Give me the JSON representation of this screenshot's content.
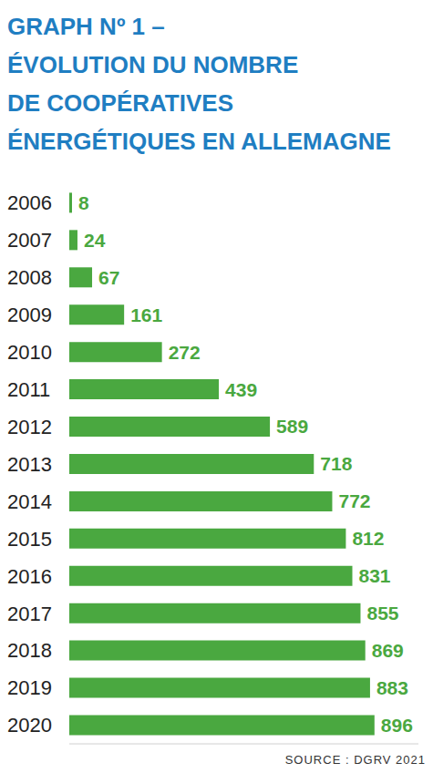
{
  "chart_data": {
    "type": "bar",
    "title": "GRAPH Nº 1 –\nÉVOLUTION DU NOMBRE\nDE COOPÉRATIVES\nÉNERGÉTIQUES EN ALLEMAGNE",
    "source": "SOURCE : DGRV 2021",
    "categories": [
      "2006",
      "2007",
      "2008",
      "2009",
      "2010",
      "2011",
      "2012",
      "2013",
      "2014",
      "2015",
      "2016",
      "2017",
      "2018",
      "2019",
      "2020"
    ],
    "values": [
      8,
      24,
      67,
      161,
      272,
      439,
      589,
      718,
      772,
      812,
      831,
      855,
      869,
      883,
      896
    ],
    "color": "#4aa840",
    "orientation": "horizontal",
    "data_labels": true,
    "tick_labels": "y",
    "grid": false,
    "xlim": [
      0,
      1025
    ]
  }
}
